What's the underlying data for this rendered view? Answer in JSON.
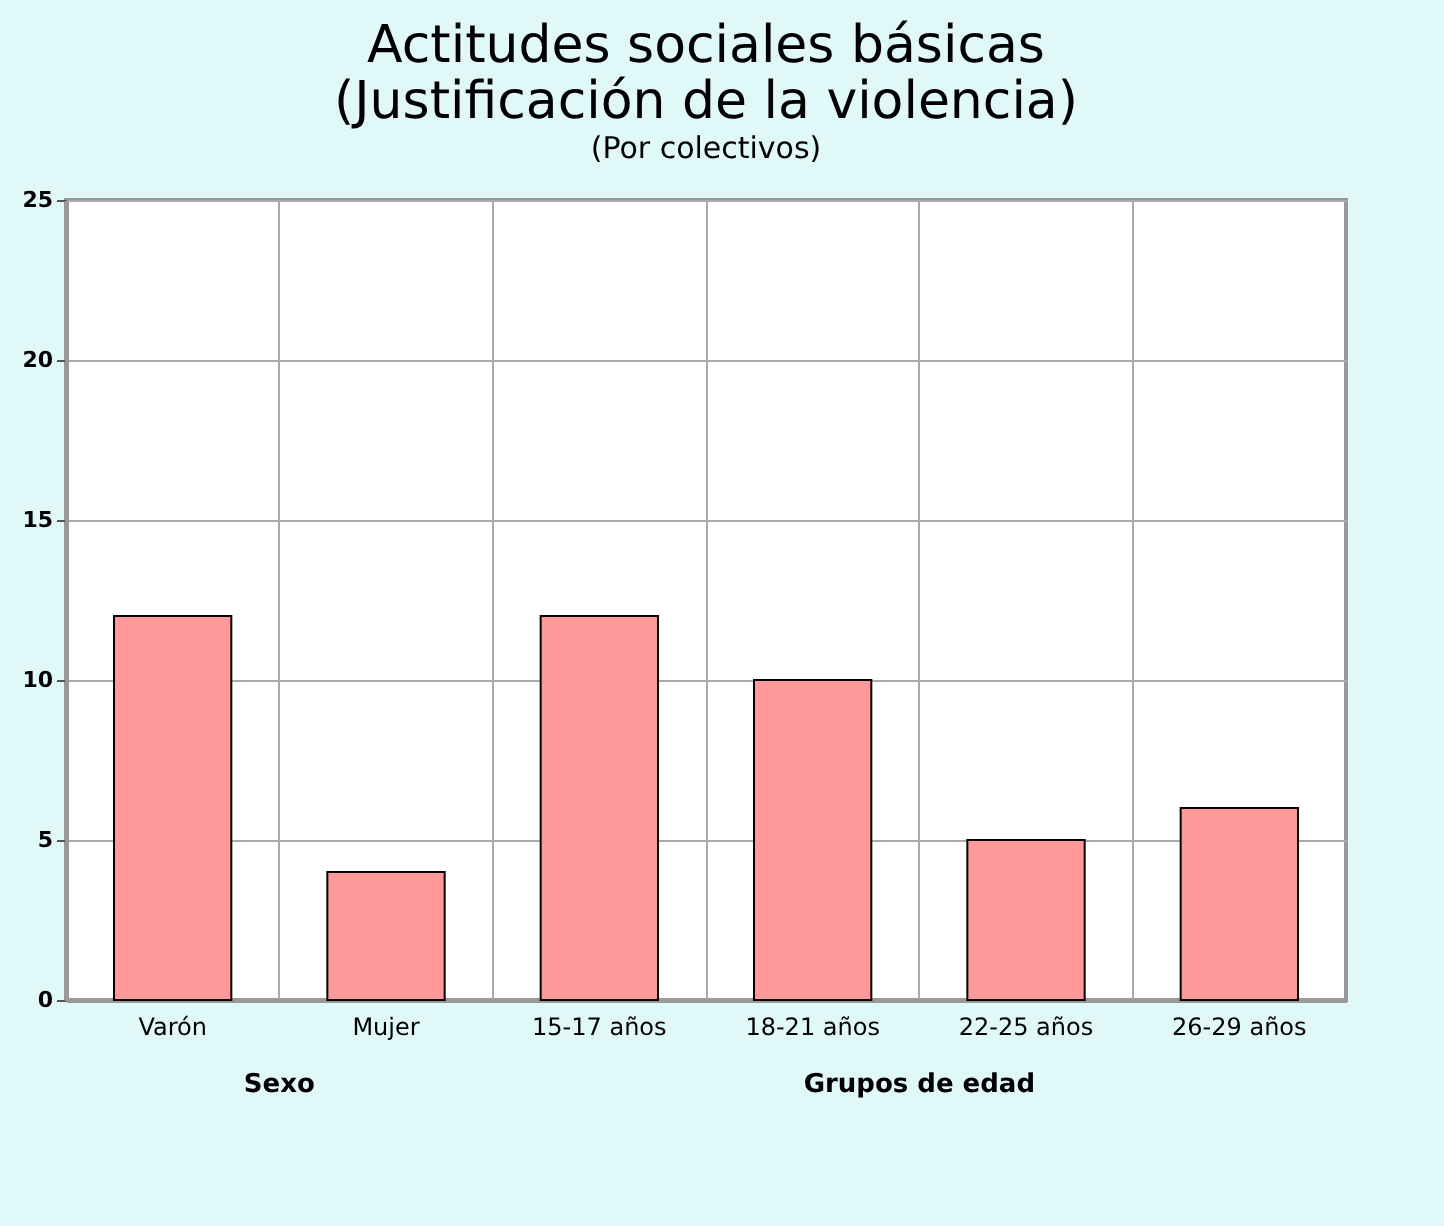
{
  "chart_data": {
    "type": "bar",
    "title": [
      "Actitudes sociales básicas",
      "(Justificación de la violencia)"
    ],
    "subtitle": "(Por colectivos)",
    "categories": [
      "Varón",
      "Mujer",
      "15-17 años",
      "18-21 años",
      "22-25 años",
      "26-29 años"
    ],
    "values": [
      12,
      4,
      12,
      10,
      5,
      6
    ],
    "color": "#ff9999",
    "ylim": [
      0,
      25
    ],
    "yticks": [
      0,
      5,
      10,
      15,
      20,
      25
    ],
    "grid": true,
    "annotations": [
      "Sexo",
      "Grupos de edad"
    ]
  }
}
